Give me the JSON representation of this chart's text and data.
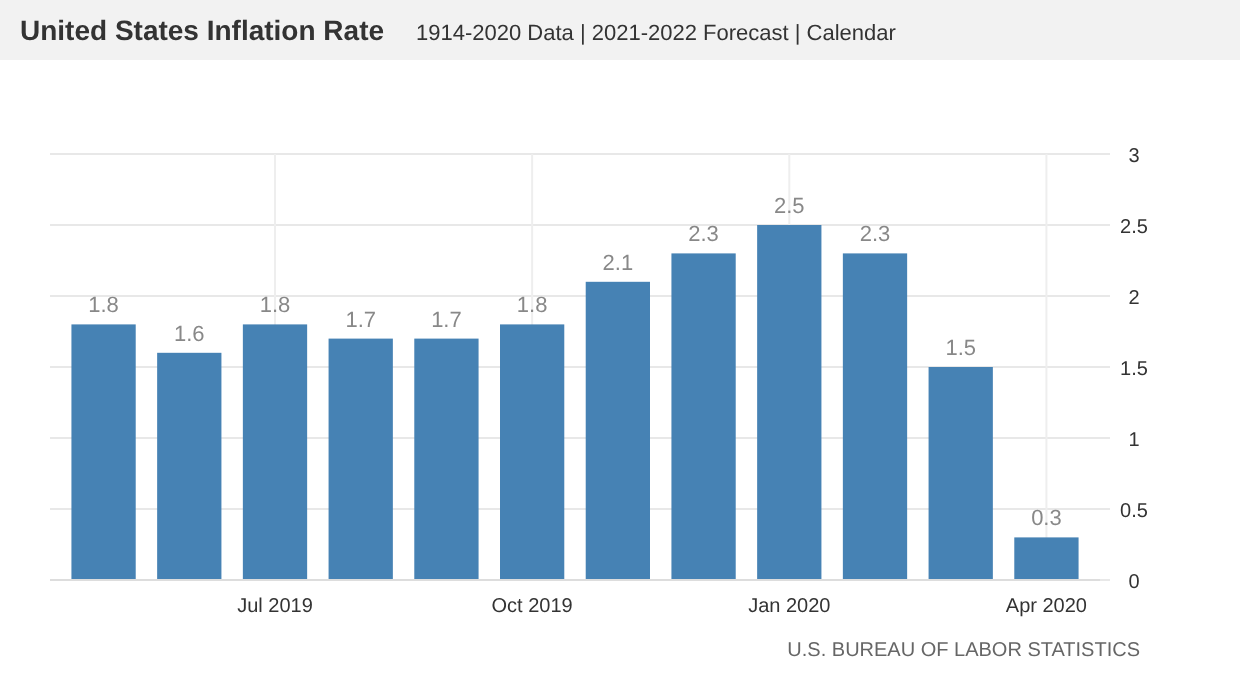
{
  "chart_data": {
    "type": "bar",
    "title": "United States Inflation Rate",
    "subtitle": "1914-2020 Data | 2021-2022 Forecast | Calendar",
    "categories": [
      null,
      null,
      "Jul 2019",
      null,
      null,
      "Oct 2019",
      null,
      null,
      "Jan 2020",
      null,
      null,
      "Apr 2020"
    ],
    "values": [
      1.8,
      1.6,
      1.8,
      1.7,
      1.7,
      1.8,
      2.1,
      2.3,
      2.5,
      2.3,
      1.5,
      0.3
    ],
    "color": "#4682b4",
    "ylim": [
      0,
      3
    ],
    "yticks": [
      0,
      0.5,
      1,
      1.5,
      2,
      2.5,
      3
    ],
    "grid": true,
    "data_labels": true,
    "annotations": [
      "U.S. BUREAU OF LABOR STATISTICS"
    ]
  }
}
